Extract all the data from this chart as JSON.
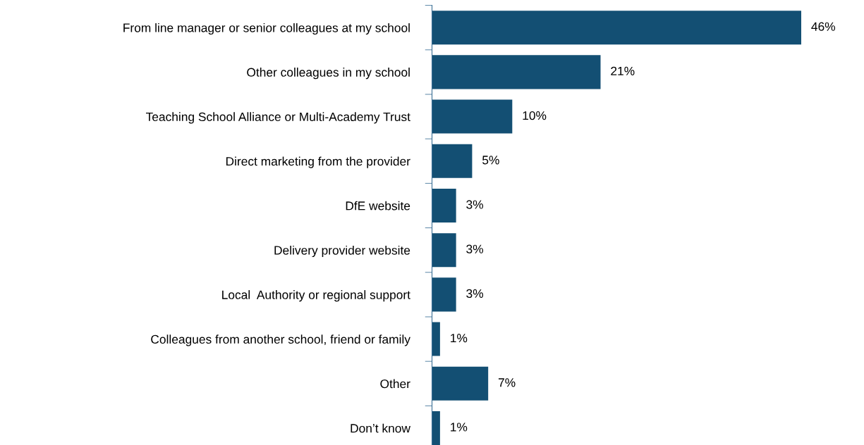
{
  "chart_data": {
    "type": "bar",
    "orientation": "horizontal",
    "categories": [
      "From line manager or senior colleagues at my school",
      "Other colleagues in my school",
      "Teaching School Alliance or Multi-Academy Trust",
      "Direct marketing from the provider",
      "DfE website",
      "Delivery provider website",
      "Local  Authority or regional support",
      "Colleagues from another school, friend or family",
      "Other",
      "Don’t know"
    ],
    "values": [
      46,
      21,
      10,
      5,
      3,
      3,
      3,
      1,
      7,
      1
    ],
    "value_labels": [
      "46%",
      "21%",
      "10%",
      "5%",
      "3%",
      "3%",
      "3%",
      "1%",
      "7%",
      "1%"
    ],
    "color": "#134f73",
    "grid": false,
    "legend": false
  }
}
